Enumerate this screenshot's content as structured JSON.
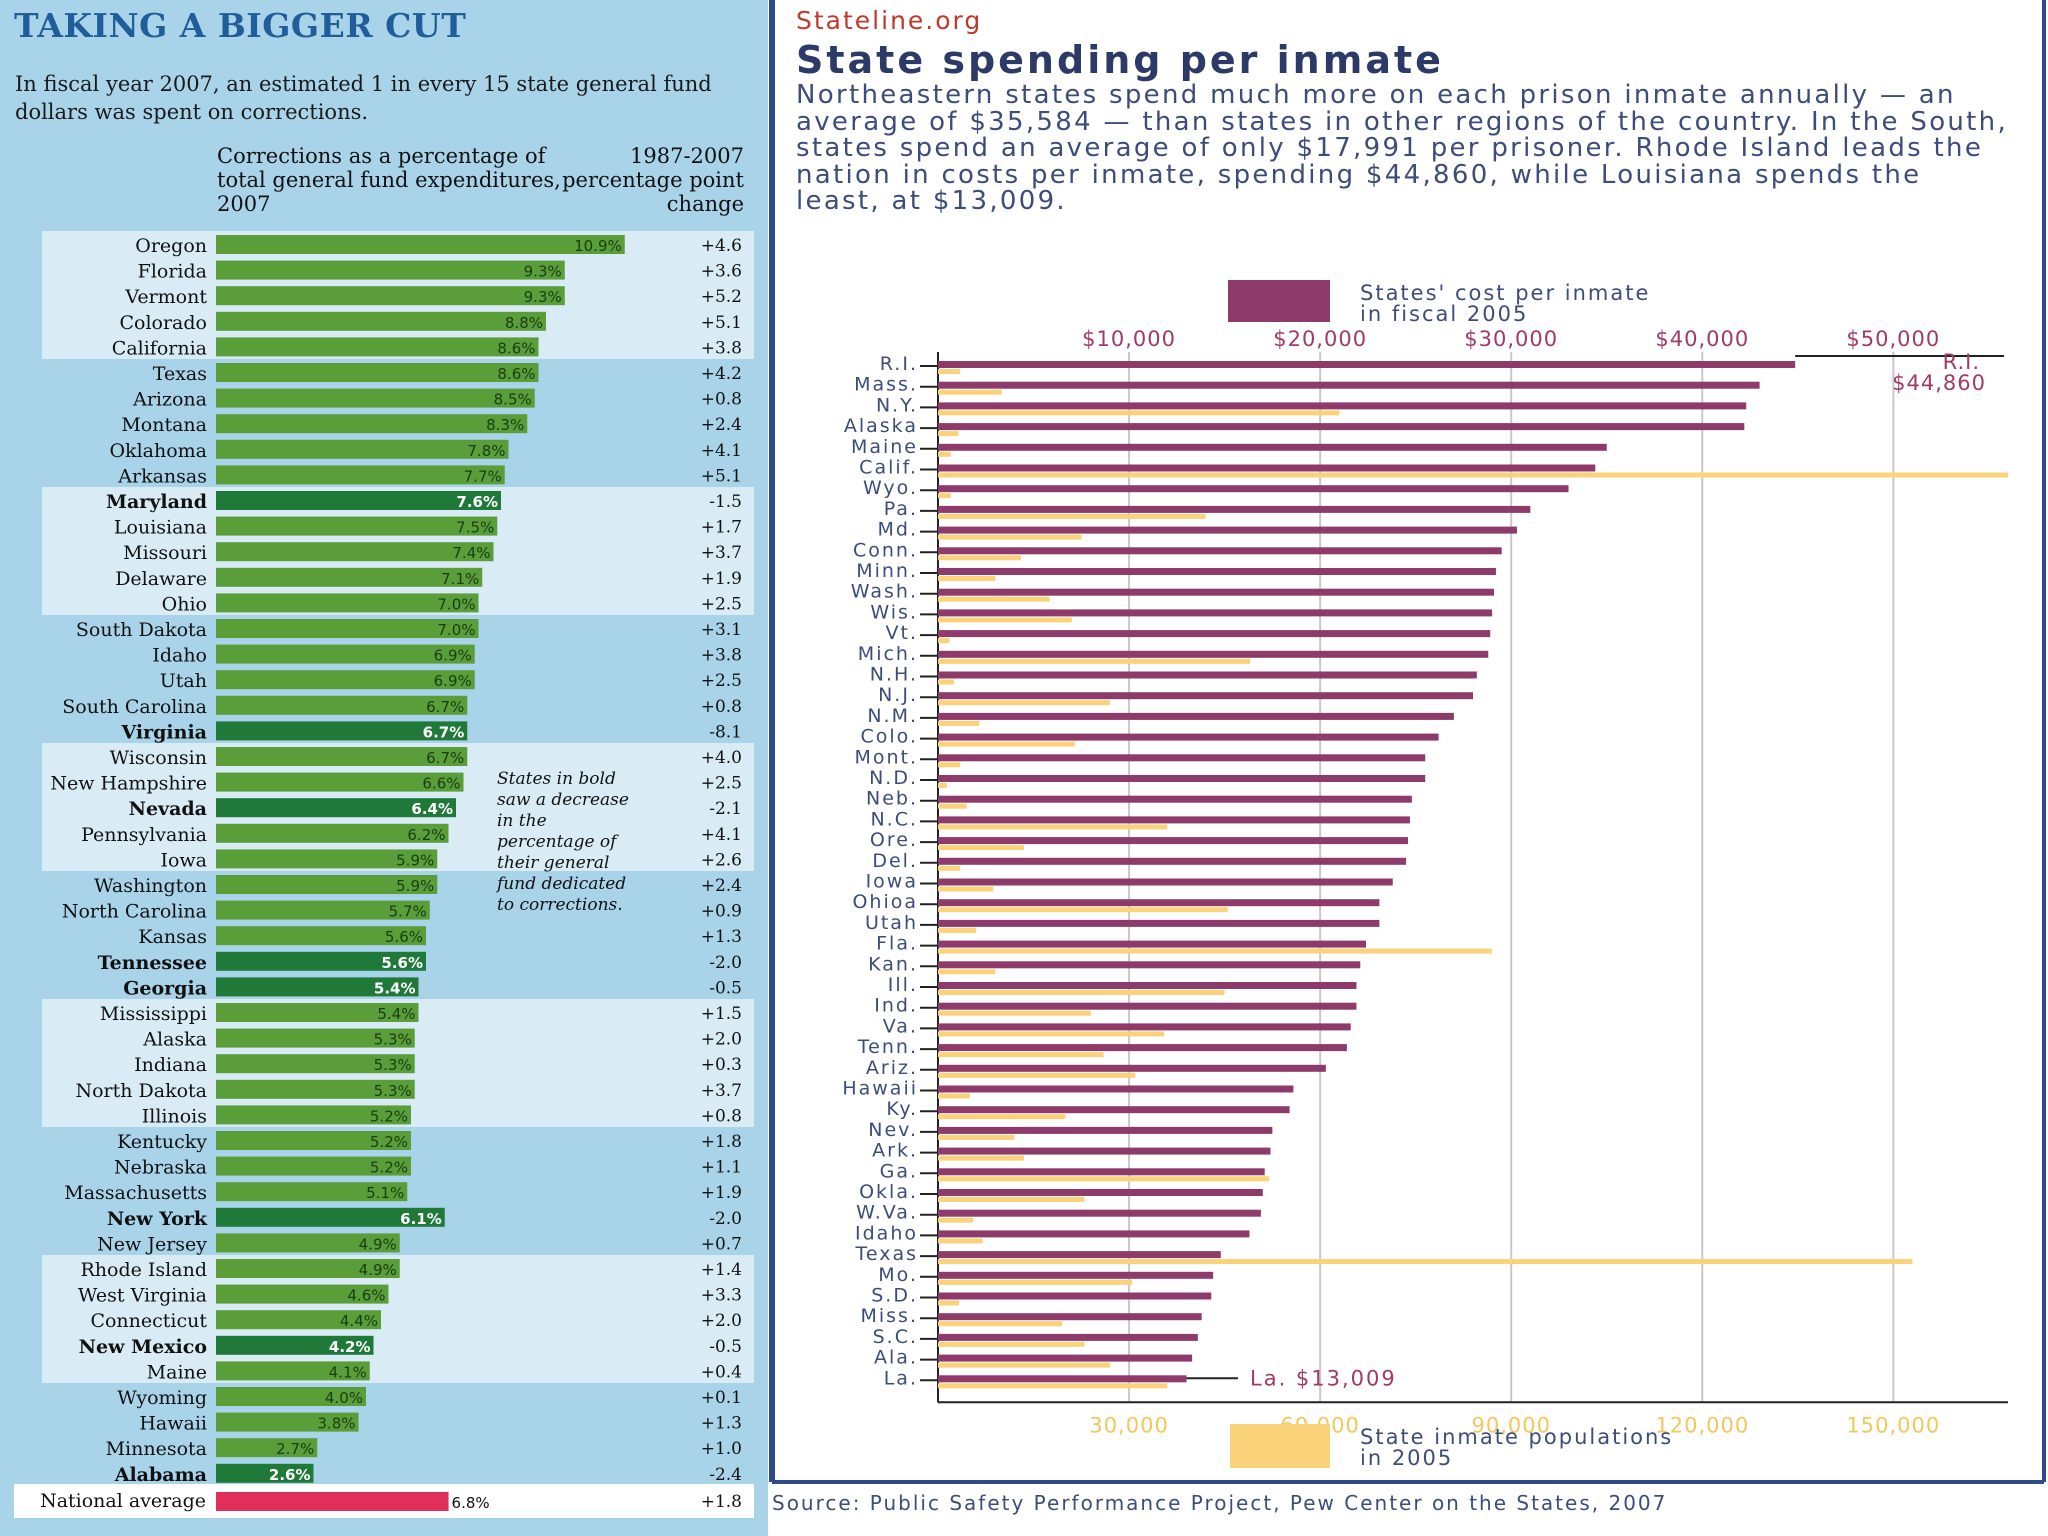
{
  "left": {
    "title": "TAKING A BIGGER CUT",
    "intro": "In fiscal year 2007, an estimated 1 in every 15 state general fund dollars was spent on corrections.",
    "col_header_left": "Corrections as a percentage of total general fund expenditures, 2007",
    "col_header_right": "1987-2007 percentage point change",
    "note": "States in bold saw a decrease in the percentage of their general fund dedicated to corrections.",
    "national_label": "National average",
    "national_pct": 6.8,
    "national_pct_label": "6.8%",
    "national_change": "+1.8"
  },
  "right": {
    "site": "Stateline.org",
    "title": "State spending per inmate",
    "description": "Northeastern states spend much more on each prison inmate annually — an average of $35,584 — than states in other regions of the country. In the South, states spend an average of only $17,991 per prisoner. Rhode Island leads the nation in costs per inmate, spending $44,860, while Louisiana spends the least, at $13,009.",
    "legend_cost": "States' cost per inmate in fiscal 2005",
    "legend_pop": "State inmate populations in 2005",
    "annot_top_state": "R.I.",
    "annot_top_value": "$44,860",
    "annot_bottom": "La. $13,009",
    "source": "Source: Public Safety Performance Project, Pew Center on the States, 2007"
  },
  "colors": {
    "bar_green": "#5a9e3a",
    "bar_dark_green": "#1f7a3a",
    "bar_red": "#e0305a",
    "cost_bar": "#8e3a6a",
    "pop_bar": "#f9d27a",
    "title_blue": "#1f5e9a"
  },
  "chart_data": [
    {
      "type": "bar",
      "orientation": "horizontal",
      "title": "Corrections as a percentage of total general fund expenditures, 2007",
      "categories": [
        "Oregon",
        "Florida",
        "Vermont",
        "Colorado",
        "California",
        "Texas",
        "Arizona",
        "Montana",
        "Oklahoma",
        "Arkansas",
        "Maryland",
        "Louisiana",
        "Missouri",
        "Delaware",
        "Ohio",
        "South Dakota",
        "Idaho",
        "Utah",
        "South Carolina",
        "Virginia",
        "Wisconsin",
        "New Hampshire",
        "Nevada",
        "Pennsylvania",
        "Iowa",
        "Washington",
        "North Carolina",
        "Kansas",
        "Tennessee",
        "Georgia",
        "Mississippi",
        "Alaska",
        "Indiana",
        "North Dakota",
        "Illinois",
        "Kentucky",
        "Nebraska",
        "Massachusetts",
        "New York",
        "New Jersey",
        "Rhode Island",
        "West Virginia",
        "Connecticut",
        "New Mexico",
        "Maine",
        "Wyoming",
        "Hawaii",
        "Minnesota",
        "Alabama"
      ],
      "values": [
        10.9,
        9.3,
        9.3,
        8.8,
        8.6,
        8.6,
        8.5,
        8.3,
        7.8,
        7.7,
        7.6,
        7.5,
        7.4,
        7.1,
        7.0,
        7.0,
        6.9,
        6.9,
        6.7,
        6.7,
        6.7,
        6.6,
        6.4,
        6.2,
        5.9,
        5.9,
        5.7,
        5.6,
        5.6,
        5.4,
        5.4,
        5.3,
        5.3,
        5.3,
        5.2,
        5.2,
        5.2,
        5.1,
        6.1,
        4.9,
        4.9,
        4.6,
        4.4,
        4.2,
        4.1,
        4.0,
        3.8,
        2.7,
        2.6
      ],
      "labels": [
        "10.9%",
        "9.3%",
        "9.3%",
        "8.8%",
        "8.6%",
        "8.6%",
        "8.5%",
        "8.3%",
        "7.8%",
        "7.7%",
        "7.6%",
        "7.5%",
        "7.4%",
        "7.1%",
        "7.0%",
        "7.0%",
        "6.9%",
        "6.9%",
        "6.7%",
        "6.7%",
        "6.7%",
        "6.6%",
        "6.4%",
        "6.2%",
        "5.9%",
        "5.9%",
        "5.7%",
        "5.6%",
        "5.6%",
        "5.4%",
        "5.4%",
        "5.3%",
        "5.3%",
        "5.3%",
        "5.2%",
        "5.2%",
        "5.2%",
        "5.1%",
        "6.1%",
        "4.9%",
        "4.9%",
        "4.6%",
        "4.4%",
        "4.2%",
        "4.1%",
        "4.0%",
        "3.8%",
        "2.7%",
        "2.6%"
      ],
      "change_1987_2007": [
        "+4.6",
        "+3.6",
        "+5.2",
        "+5.1",
        "+3.8",
        "+4.2",
        "+0.8",
        "+2.4",
        "+4.1",
        "+5.1",
        "-1.5",
        "+1.7",
        "+3.7",
        "+1.9",
        "+2.5",
        "+3.1",
        "+3.8",
        "+2.5",
        "+0.8",
        "-8.1",
        "+4.0",
        "+2.5",
        "-2.1",
        "+4.1",
        "+2.6",
        "+2.4",
        "+0.9",
        "+1.3",
        "-2.0",
        "-0.5",
        "+1.5",
        "+2.0",
        "+0.3",
        "+3.7",
        "+0.8",
        "+1.8",
        "+1.1",
        "+1.9",
        "-2.0",
        "+0.7",
        "+1.4",
        "+3.3",
        "+2.0",
        "-0.5",
        "+0.4",
        "+0.1",
        "+1.3",
        "+1.0",
        "-2.4"
      ],
      "bold_decrease": [
        "Maryland",
        "Virginia",
        "Nevada",
        "Tennessee",
        "Georgia",
        "New York",
        "New Mexico",
        "Alabama"
      ],
      "xlim": [
        0,
        11.5
      ]
    },
    {
      "type": "bar",
      "orientation": "horizontal",
      "title": "State spending per inmate",
      "categories": [
        "R.I.",
        "Mass.",
        "N.Y.",
        "Alaska",
        "Maine",
        "Calif.",
        "Wyo.",
        "Pa.",
        "Md.",
        "Conn.",
        "Minn.",
        "Wash.",
        "Wis.",
        "Vt.",
        "Mich.",
        "N.H.",
        "N.J.",
        "N.M.",
        "Colo.",
        "Mont.",
        "N.D.",
        "Neb.",
        "N.C.",
        "Ore.",
        "Del.",
        "Iowa",
        "Ohioa",
        "Utah",
        "Fla.",
        "Kan.",
        "Ill.",
        "Ind.",
        "Va.",
        "Tenn.",
        "Ariz.",
        "Hawaii",
        "Ky.",
        "Nev.",
        "Ark.",
        "Ga.",
        "Okla.",
        "W.Va.",
        "Idaho",
        "Texas",
        "Mo.",
        "S.D.",
        "Miss.",
        "S.C.",
        "Ala.",
        "La."
      ],
      "series": [
        {
          "name": "States' cost per inmate in fiscal 2005",
          "axis": "top",
          "values": [
            44860,
            43000,
            42300,
            42200,
            35000,
            34400,
            33000,
            31000,
            30300,
            29500,
            29200,
            29100,
            29000,
            28900,
            28800,
            28200,
            28000,
            27000,
            26200,
            25500,
            25500,
            24800,
            24700,
            24600,
            24500,
            23800,
            23100,
            23100,
            22400,
            22100,
            21900,
            21900,
            21600,
            21400,
            20300,
            18600,
            18400,
            17500,
            17400,
            17100,
            17000,
            16900,
            16300,
            14800,
            14400,
            14300,
            13800,
            13600,
            13300,
            13009
          ]
        },
        {
          "name": "State inmate populations in 2005",
          "axis": "bottom",
          "values": [
            3500,
            10000,
            63000,
            3200,
            2000,
            170000,
            2000,
            42000,
            22500,
            13000,
            9000,
            17500,
            21000,
            1800,
            49000,
            2500,
            27000,
            6500,
            21500,
            3500,
            1400,
            4500,
            36000,
            13500,
            3500,
            8700,
            45500,
            6000,
            87000,
            9000,
            45000,
            24000,
            35500,
            26000,
            31000,
            5000,
            20000,
            12000,
            13500,
            52000,
            23000,
            5500,
            7000,
            153000,
            30500,
            3300,
            19500,
            23000,
            27000,
            36000
          ]
        }
      ],
      "top_axis_ticks": [
        "$10,000",
        "$20,000",
        "$30,000",
        "$40,000",
        "$50,000"
      ],
      "top_axis_values": [
        10000,
        20000,
        30000,
        40000,
        50000
      ],
      "bottom_axis_ticks": [
        "30,000",
        "60,000",
        "90,000",
        "120,000",
        "150,000"
      ],
      "bottom_axis_values": [
        30000,
        60000,
        90000,
        120000,
        150000
      ],
      "xlim_cost": [
        0,
        56000
      ],
      "xlim_pop": [
        0,
        168000
      ]
    }
  ]
}
